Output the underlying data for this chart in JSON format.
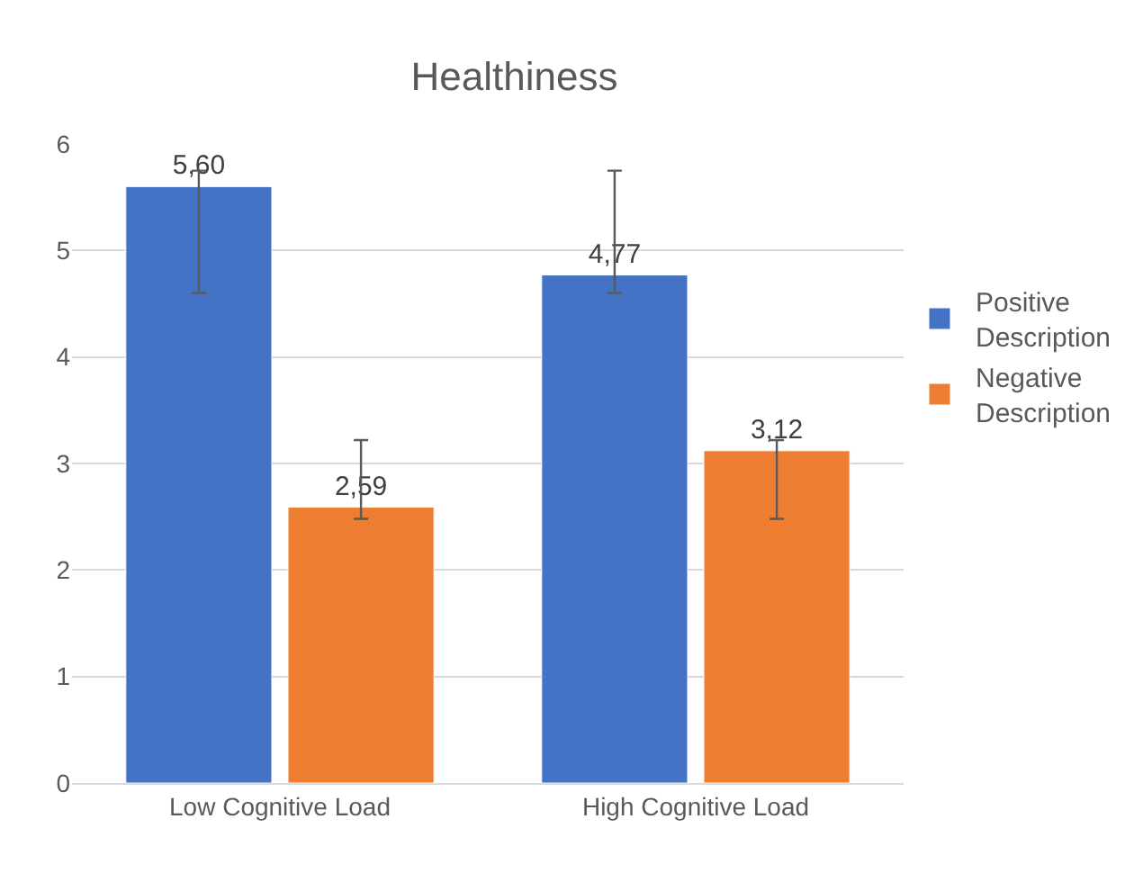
{
  "chart_data": {
    "type": "bar",
    "title": "Healthiness",
    "categories": [
      "Low Cognitive Load",
      "High Cognitive Load"
    ],
    "series": [
      {
        "name": "Positive Description",
        "color": "#4472c4",
        "values": [
          5.6,
          4.77
        ],
        "value_labels": [
          "5,60",
          "4,77"
        ],
        "errors": [
          [
            4.6,
            5.75
          ],
          [
            4.6,
            5.75
          ]
        ]
      },
      {
        "name": "Negative Description",
        "color": "#ed7d31",
        "values": [
          2.59,
          3.12
        ],
        "value_labels": [
          "2,59",
          "3,12"
        ],
        "errors": [
          [
            2.48,
            3.22
          ],
          [
            2.48,
            3.22
          ]
        ]
      }
    ],
    "ylim": [
      0,
      6
    ],
    "yticks": [
      0,
      1,
      2,
      3,
      4,
      5,
      6
    ],
    "grid": "y",
    "legend": "right"
  }
}
